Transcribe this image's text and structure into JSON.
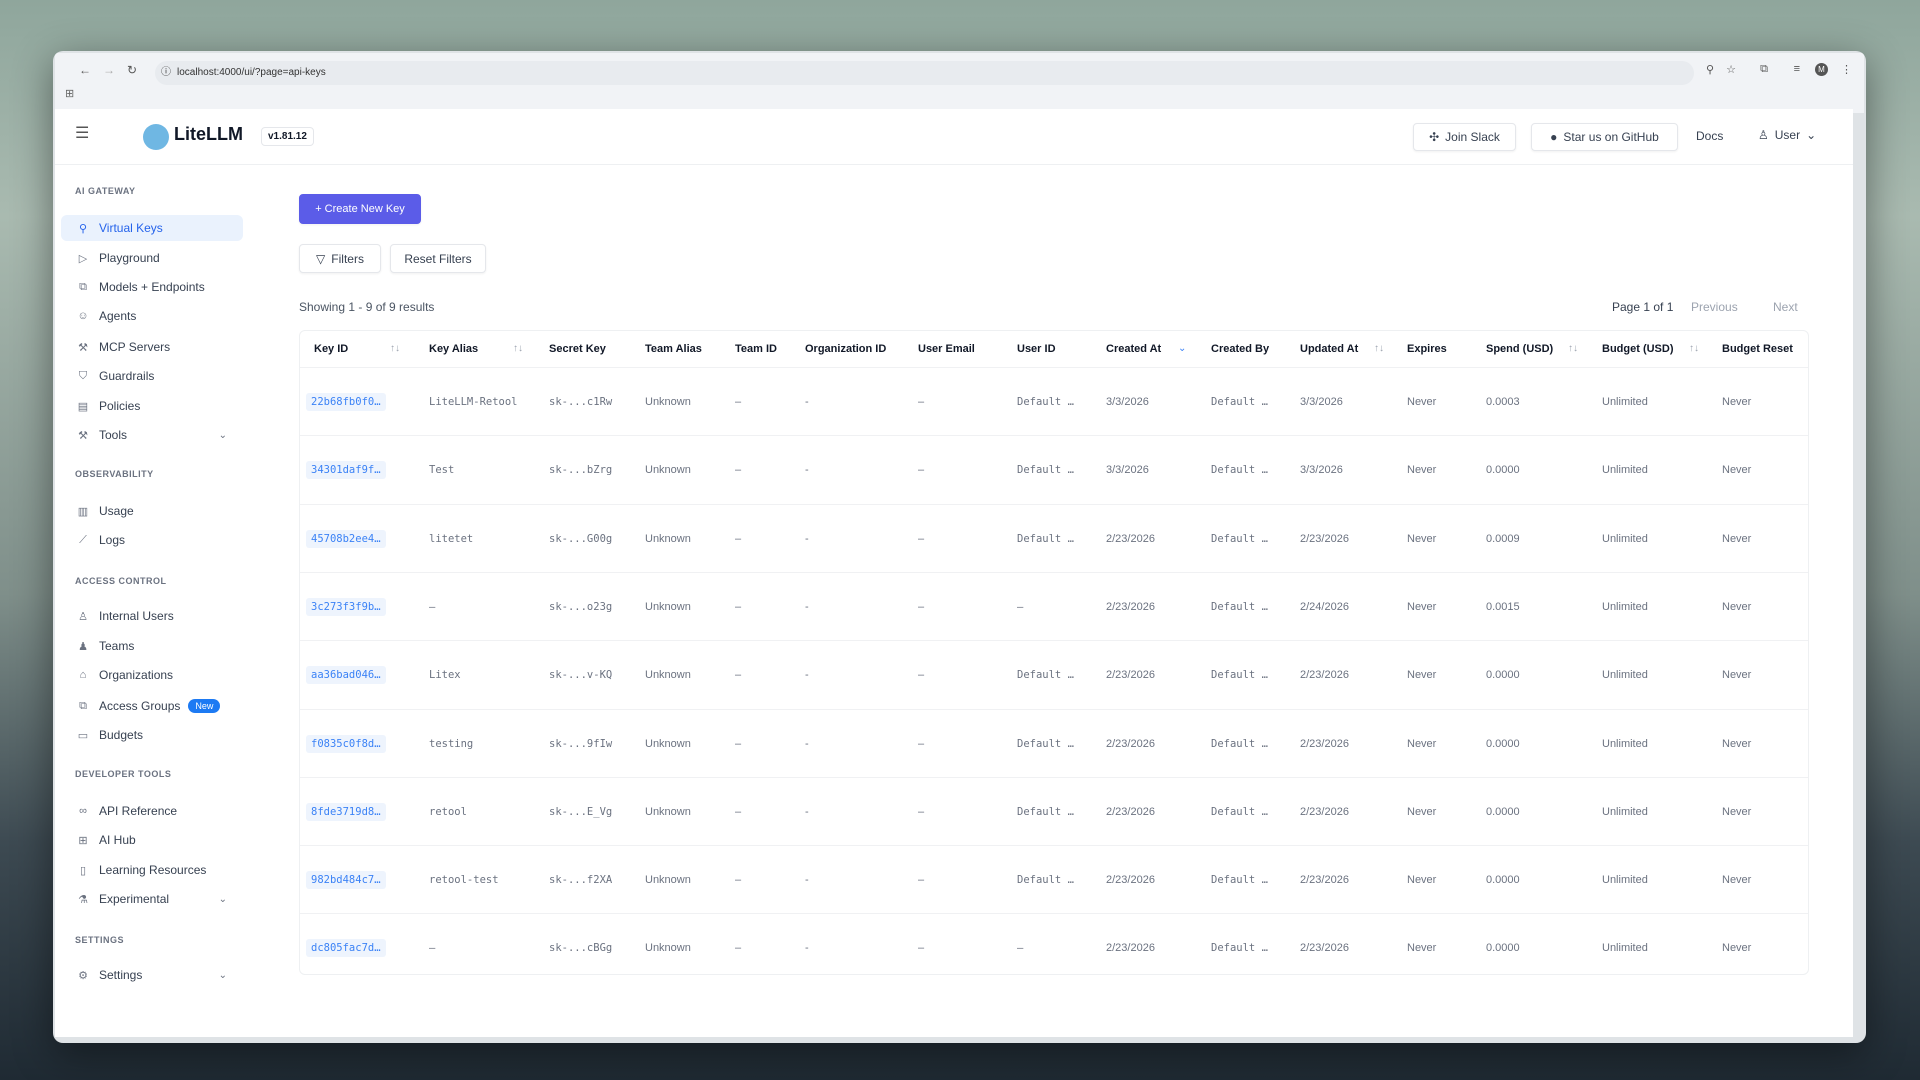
{
  "browser": {
    "url": "localhost:4000/ui/?page=api-keys"
  },
  "header": {
    "brand": "LiteLLM",
    "version": "v1.81.12",
    "join_slack": "Join Slack",
    "github": "Star us on GitHub",
    "docs": "Docs",
    "user": "User"
  },
  "sidebar": [
    {
      "type": "section",
      "label": "AI GATEWAY"
    },
    {
      "type": "item",
      "label": "Virtual Keys",
      "icon": "key-search-icon",
      "glyph": "⚲",
      "active": true
    },
    {
      "type": "item",
      "label": "Playground",
      "icon": "play-circle-icon",
      "glyph": "▷"
    },
    {
      "type": "item",
      "label": "Models + Endpoints",
      "icon": "models-icon",
      "glyph": "⧉"
    },
    {
      "type": "item",
      "label": "Agents",
      "icon": "agent-icon",
      "glyph": "☺"
    },
    {
      "type": "item",
      "label": "MCP Servers",
      "icon": "tool-icon",
      "glyph": "⚒"
    },
    {
      "type": "item",
      "label": "Guardrails",
      "icon": "shield-icon",
      "glyph": "⛉"
    },
    {
      "type": "item",
      "label": "Policies",
      "icon": "policy-icon",
      "glyph": "▤"
    },
    {
      "type": "item",
      "label": "Tools",
      "icon": "wrench-icon",
      "glyph": "⚒",
      "chevron": true
    },
    {
      "type": "section",
      "label": "OBSERVABILITY"
    },
    {
      "type": "item",
      "label": "Usage",
      "icon": "bar-chart-icon",
      "glyph": "▥"
    },
    {
      "type": "item",
      "label": "Logs",
      "icon": "line-chart-icon",
      "glyph": "⟋"
    },
    {
      "type": "section",
      "label": "ACCESS CONTROL"
    },
    {
      "type": "item",
      "label": "Internal Users",
      "icon": "user-icon",
      "glyph": "♙"
    },
    {
      "type": "item",
      "label": "Teams",
      "icon": "team-icon",
      "glyph": "♟"
    },
    {
      "type": "item",
      "label": "Organizations",
      "icon": "bank-icon",
      "glyph": "⌂"
    },
    {
      "type": "item",
      "label": "Access Groups",
      "icon": "groups-icon",
      "glyph": "⧉",
      "badge": "New"
    },
    {
      "type": "item",
      "label": "Budgets",
      "icon": "wallet-icon",
      "glyph": "▭"
    },
    {
      "type": "section",
      "label": "DEVELOPER TOOLS"
    },
    {
      "type": "item",
      "label": "API Reference",
      "icon": "link-icon",
      "glyph": "∞"
    },
    {
      "type": "item",
      "label": "AI Hub",
      "icon": "grid-icon",
      "glyph": "⊞"
    },
    {
      "type": "item",
      "label": "Learning Resources",
      "icon": "book-icon",
      "glyph": "▯"
    },
    {
      "type": "item",
      "label": "Experimental",
      "icon": "flask-icon",
      "glyph": "⚗",
      "chevron": true
    },
    {
      "type": "section",
      "label": "SETTINGS"
    },
    {
      "type": "item",
      "label": "Settings",
      "icon": "gear-icon",
      "glyph": "⚙",
      "chevron": true
    }
  ],
  "toolbar": {
    "create": "+ Create New Key",
    "filters": "Filters",
    "reset": "Reset Filters",
    "showing": "Showing 1 - 9 of 9 results",
    "page": "Page 1 of 1",
    "previous": "Previous",
    "next": "Next"
  },
  "table": {
    "columns": [
      {
        "label": "Key ID",
        "sort": "both"
      },
      {
        "label": "Key Alias",
        "sort": "both"
      },
      {
        "label": "Secret Key"
      },
      {
        "label": "Team Alias"
      },
      {
        "label": "Team ID"
      },
      {
        "label": "Organization ID"
      },
      {
        "label": "User Email"
      },
      {
        "label": "User ID"
      },
      {
        "label": "Created At",
        "sort": "desc"
      },
      {
        "label": "Created By"
      },
      {
        "label": "Updated At",
        "sort": "both"
      },
      {
        "label": "Expires"
      },
      {
        "label": "Spend (USD)",
        "sort": "both"
      },
      {
        "label": "Budget (USD)",
        "sort": "both"
      },
      {
        "label": "Budget Reset"
      }
    ],
    "rows": [
      [
        "22b68fb0f0…",
        "LiteLLM-Retool",
        "sk-...c1Rw",
        "Unknown",
        "–",
        "-",
        "–",
        "Default …",
        "3/3/2026",
        "Default …",
        "3/3/2026",
        "Never",
        "0.0003",
        "Unlimited",
        "Never"
      ],
      [
        "34301daf9f…",
        "Test",
        "sk-...bZrg",
        "Unknown",
        "–",
        "-",
        "–",
        "Default …",
        "3/3/2026",
        "Default …",
        "3/3/2026",
        "Never",
        "0.0000",
        "Unlimited",
        "Never"
      ],
      [
        "45708b2ee4…",
        "litetet",
        "sk-...G00g",
        "Unknown",
        "–",
        "-",
        "–",
        "Default …",
        "2/23/2026",
        "Default …",
        "2/23/2026",
        "Never",
        "0.0009",
        "Unlimited",
        "Never"
      ],
      [
        "3c273f3f9b…",
        "–",
        "sk-...o23g",
        "Unknown",
        "–",
        "-",
        "–",
        "–",
        "2/23/2026",
        "Default …",
        "2/24/2026",
        "Never",
        "0.0015",
        "Unlimited",
        "Never"
      ],
      [
        "aa36bad046…",
        "Litex",
        "sk-...v-KQ",
        "Unknown",
        "–",
        "-",
        "–",
        "Default …",
        "2/23/2026",
        "Default …",
        "2/23/2026",
        "Never",
        "0.0000",
        "Unlimited",
        "Never"
      ],
      [
        "f0835c0f8d…",
        "testing",
        "sk-...9fIw",
        "Unknown",
        "–",
        "-",
        "–",
        "Default …",
        "2/23/2026",
        "Default …",
        "2/23/2026",
        "Never",
        "0.0000",
        "Unlimited",
        "Never"
      ],
      [
        "8fde3719d8…",
        "retool",
        "sk-...E_Vg",
        "Unknown",
        "–",
        "-",
        "–",
        "Default …",
        "2/23/2026",
        "Default …",
        "2/23/2026",
        "Never",
        "0.0000",
        "Unlimited",
        "Never"
      ],
      [
        "982bd484c7…",
        "retool-test",
        "sk-...f2XA",
        "Unknown",
        "–",
        "-",
        "–",
        "Default …",
        "2/23/2026",
        "Default …",
        "2/23/2026",
        "Never",
        "0.0000",
        "Unlimited",
        "Never"
      ],
      [
        "dc805fac7d…",
        "–",
        "sk-...cBGg",
        "Unknown",
        "–",
        "-",
        "–",
        "–",
        "2/23/2026",
        "Default …",
        "2/23/2026",
        "Never",
        "0.0000",
        "Unlimited",
        "Never"
      ]
    ]
  },
  "colors": {
    "primary": "#5b5ce8",
    "active_bg": "#eaf2fd",
    "link": "#3b82f6",
    "badge": "#1d7af3"
  }
}
